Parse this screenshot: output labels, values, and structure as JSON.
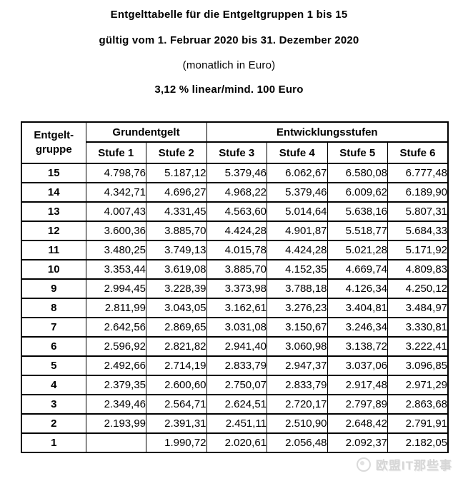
{
  "header": {
    "title": "Entgelttabelle für die Entgeltgruppen 1 bis 15",
    "validity": "gültig vom 1. Februar 2020 bis 31. Dezember 2020",
    "unit_note": "(monatlich in Euro)",
    "increase_note": "3,12 % linear/mind. 100 Euro"
  },
  "table": {
    "group_label_line1": "Entgelt-",
    "group_label_line2": "gruppe",
    "grundentgelt_label": "Grundentgelt",
    "entwicklungsstufen_label": "Entwicklungsstufen",
    "stufe_headers": [
      "Stufe 1",
      "Stufe 2",
      "Stufe 3",
      "Stufe 4",
      "Stufe 5",
      "Stufe 6"
    ],
    "rows": [
      {
        "group": "15",
        "values": [
          "4.798,76",
          "5.187,12",
          "5.379,46",
          "6.062,67",
          "6.580,08",
          "6.777,48"
        ]
      },
      {
        "group": "14",
        "values": [
          "4.342,71",
          "4.696,27",
          "4.968,22",
          "5.379,46",
          "6.009,62",
          "6.189,90"
        ]
      },
      {
        "group": "13",
        "values": [
          "4.007,43",
          "4.331,45",
          "4.563,60",
          "5.014,64",
          "5.638,16",
          "5.807,31"
        ]
      },
      {
        "group": "12",
        "values": [
          "3.600,36",
          "3.885,70",
          "4.424,28",
          "4.901,87",
          "5.518,77",
          "5.684,33"
        ]
      },
      {
        "group": "11",
        "values": [
          "3.480,25",
          "3.749,13",
          "4.015,78",
          "4.424,28",
          "5.021,28",
          "5.171,92"
        ]
      },
      {
        "group": "10",
        "values": [
          "3.353,44",
          "3.619,08",
          "3.885,70",
          "4.152,35",
          "4.669,74",
          "4.809,83"
        ]
      },
      {
        "group": "9",
        "values": [
          "2.994,45",
          "3.228,39",
          "3.373,98",
          "3.788,18",
          "4.126,34",
          "4.250,12"
        ]
      },
      {
        "group": "8",
        "values": [
          "2.811,99",
          "3.043,05",
          "3.162,61",
          "3.276,23",
          "3.404,81",
          "3.484,97"
        ]
      },
      {
        "group": "7",
        "values": [
          "2.642,56",
          "2.869,65",
          "3.031,08",
          "3.150,67",
          "3.246,34",
          "3.330,81"
        ]
      },
      {
        "group": "6",
        "values": [
          "2.596,92",
          "2.821,82",
          "2.941,40",
          "3.060,98",
          "3.138,72",
          "3.222,41"
        ]
      },
      {
        "group": "5",
        "values": [
          "2.492,66",
          "2.714,19",
          "2.833,79",
          "2.947,37",
          "3.037,06",
          "3.096,85"
        ]
      },
      {
        "group": "4",
        "values": [
          "2.379,35",
          "2.600,60",
          "2.750,07",
          "2.833,79",
          "2.917,48",
          "2.971,29"
        ]
      },
      {
        "group": "3",
        "values": [
          "2.349,46",
          "2.564,71",
          "2.624,51",
          "2.720,17",
          "2.797,89",
          "2.863,68"
        ]
      },
      {
        "group": "2",
        "values": [
          "2.193,99",
          "2.391,31",
          "2.451,11",
          "2.510,90",
          "2.648,42",
          "2.791,91"
        ]
      },
      {
        "group": "1",
        "values": [
          "",
          "1.990,72",
          "2.020,61",
          "2.056,48",
          "2.092,37",
          "2.182,05"
        ]
      }
    ]
  },
  "watermark": {
    "text": "欧盟IT那些事",
    "icon": "circle-logo-icon",
    "color": "#d6d6d6"
  },
  "colors": {
    "page_background": "#ffffff",
    "text": "#000000",
    "table_border": "#000000",
    "watermark": "#d6d6d6"
  }
}
